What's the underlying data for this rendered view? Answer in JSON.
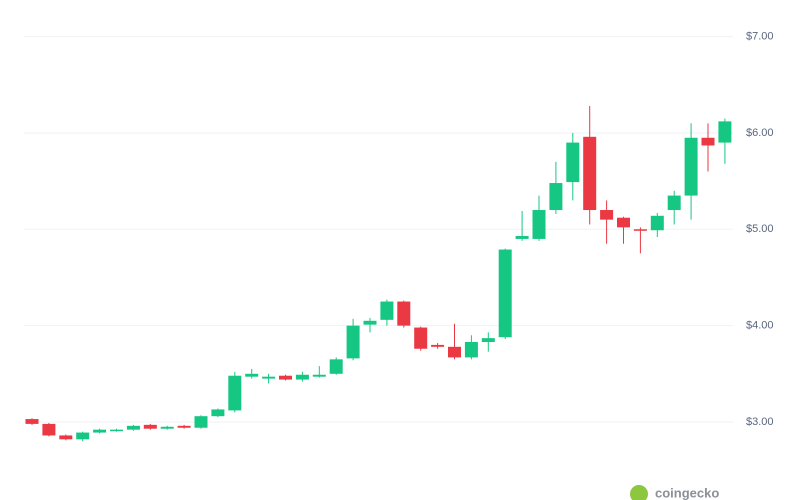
{
  "chart_data": {
    "type": "candlestick",
    "open": [
      3.03,
      2.98,
      2.86,
      2.82,
      2.89,
      2.91,
      2.92,
      2.97,
      2.93,
      2.96,
      2.94,
      3.06,
      3.12,
      3.47,
      3.45,
      3.48,
      3.44,
      3.47,
      3.5,
      3.66,
      4.01,
      4.06,
      4.25,
      3.98,
      3.8,
      3.78,
      3.67,
      3.83,
      3.88,
      4.9,
      4.9,
      5.2,
      5.49,
      5.96,
      5.2,
      5.12,
      5.0,
      4.99,
      5.2,
      5.35,
      5.95,
      5.9
    ],
    "high": [
      3.04,
      2.99,
      2.87,
      2.9,
      2.93,
      2.93,
      2.97,
      2.98,
      2.96,
      2.97,
      3.07,
      3.14,
      3.52,
      3.55,
      3.5,
      3.49,
      3.52,
      3.58,
      3.67,
      4.07,
      4.08,
      4.27,
      4.26,
      3.99,
      3.82,
      4.02,
      3.9,
      3.93,
      4.8,
      5.19,
      5.35,
      5.7,
      6.0,
      6.28,
      5.3,
      5.13,
      5.02,
      5.17,
      5.4,
      6.1,
      6.1,
      6.15
    ],
    "low": [
      2.97,
      2.85,
      2.81,
      2.8,
      2.88,
      2.9,
      2.91,
      2.92,
      2.92,
      2.93,
      2.93,
      3.05,
      3.1,
      3.45,
      3.4,
      3.43,
      3.42,
      3.46,
      3.49,
      3.64,
      3.93,
      4.0,
      3.98,
      3.74,
      3.76,
      3.65,
      3.65,
      3.73,
      3.86,
      4.88,
      4.88,
      5.16,
      5.3,
      5.05,
      4.85,
      4.85,
      4.75,
      4.92,
      5.05,
      5.1,
      5.6,
      5.68
    ],
    "close": [
      2.98,
      2.86,
      2.82,
      2.89,
      2.92,
      2.92,
      2.96,
      2.93,
      2.95,
      2.94,
      3.06,
      3.13,
      3.48,
      3.5,
      3.47,
      3.44,
      3.49,
      3.49,
      3.65,
      4.0,
      4.05,
      4.25,
      4.0,
      3.76,
      3.78,
      3.67,
      3.83,
      3.87,
      4.79,
      4.93,
      5.2,
      5.48,
      5.9,
      5.2,
      5.1,
      5.02,
      4.99,
      5.14,
      5.35,
      5.95,
      5.87,
      6.12
    ],
    "up_color": "#16c784",
    "down_color": "#ea3943",
    "ylim": [
      2.19,
      7.38
    ],
    "yticks": [
      {
        "value": 3,
        "label": "$3.00"
      },
      {
        "value": 4,
        "label": "$4.00"
      },
      {
        "value": 5,
        "label": "$5.00"
      },
      {
        "value": 6,
        "label": "$6.00"
      },
      {
        "value": 7,
        "label": "$7.00"
      }
    ],
    "grid": true,
    "watermark": "coingecko"
  }
}
